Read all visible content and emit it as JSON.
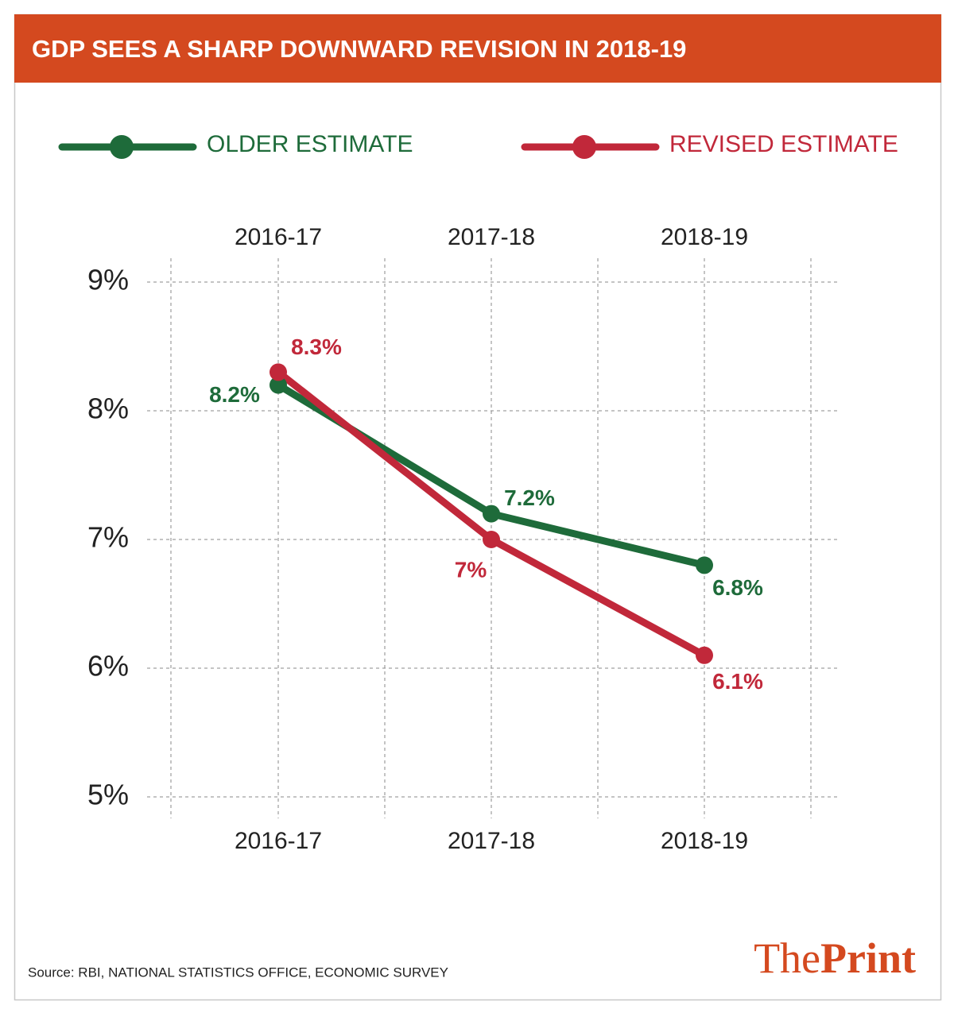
{
  "chart_data": {
    "type": "line",
    "title": "GDP SEES A SHARP DOWNWARD REVISION IN 2018-19",
    "categories": [
      "2016-17",
      "2017-18",
      "2018-19"
    ],
    "series": [
      {
        "name": "OLDER ESTIMATE",
        "color": "#1e6b3a",
        "values": [
          8.2,
          7.2,
          6.8
        ],
        "value_labels": [
          "8.2%",
          "7.2%",
          "6.8%"
        ]
      },
      {
        "name": "REVISED ESTIMATE",
        "color": "#c1283a",
        "values": [
          8.3,
          7,
          6.1
        ],
        "value_labels": [
          "8.3%",
          "7%",
          "6.1%"
        ]
      }
    ],
    "ylim": [
      5,
      9
    ],
    "yticks": [
      {
        "value": 5,
        "label": "5%"
      },
      {
        "value": 6,
        "label": "6%"
      },
      {
        "value": 7,
        "label": "7%"
      },
      {
        "value": 8,
        "label": "8%"
      },
      {
        "value": 9,
        "label": "9%"
      }
    ],
    "grid": true,
    "source": "Source: RBI, NATIONAL STATISTICS OFFICE, ECONOMIC SURVEY"
  },
  "brand": [
    "The",
    "Print"
  ]
}
